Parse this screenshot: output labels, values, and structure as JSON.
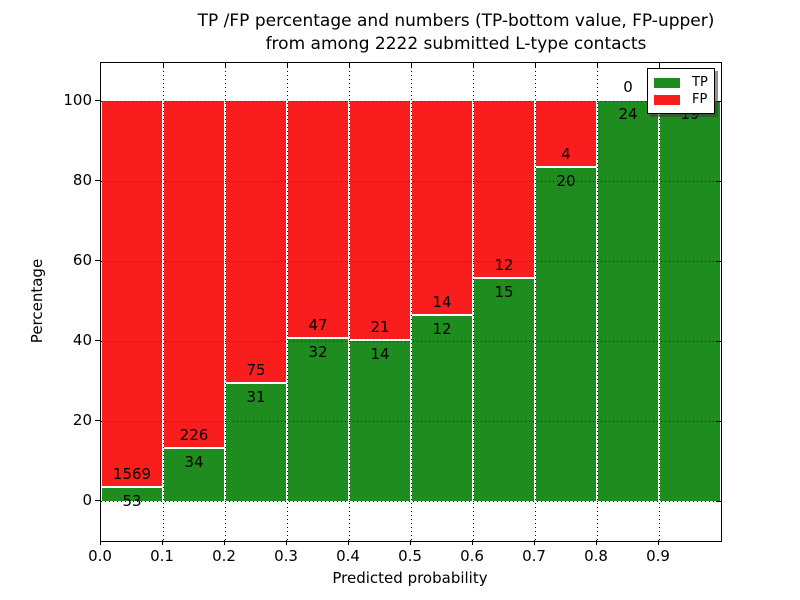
{
  "title": {
    "line1": "TP /FP percentage and numbers (TP-bottom value, FP-upper)",
    "line2": "from among 2222 submitted L-type contacts"
  },
  "chart_data": {
    "type": "bar",
    "stacked": true,
    "normalized_to_percent": true,
    "title": "TP /FP percentage and numbers (TP-bottom value, FP-upper) from among 2222 submitted L-type contacts",
    "xlabel": "Predicted probability",
    "ylabel": "Percentage",
    "total_contacts": 2222,
    "bin_width": 0.1,
    "categories": [
      "0.0",
      "0.1",
      "0.2",
      "0.3",
      "0.4",
      "0.5",
      "0.6",
      "0.7",
      "0.8",
      "0.9"
    ],
    "series": [
      {
        "name": "TP",
        "color": "#1e8c1e",
        "values": [
          53,
          34,
          31,
          32,
          14,
          12,
          15,
          20,
          24,
          19
        ]
      },
      {
        "name": "FP",
        "color": "#fa1d1d",
        "values": [
          1569,
          226,
          75,
          47,
          21,
          14,
          12,
          4,
          0,
          0
        ]
      }
    ],
    "tp_percent_of_bin": [
      3.3,
      13.1,
      29.2,
      40.5,
      40.0,
      46.2,
      55.6,
      83.3,
      100.0,
      100.0
    ],
    "x_ticks": [
      "0.0",
      "0.1",
      "0.2",
      "0.3",
      "0.4",
      "0.5",
      "0.6",
      "0.7",
      "0.8",
      "0.9"
    ],
    "y_ticks": [
      "0",
      "20",
      "40",
      "60",
      "80",
      "100"
    ],
    "xlim": [
      0.0,
      1.0
    ],
    "ylim": [
      -10,
      110
    ],
    "grid": "dotted",
    "legend": {
      "position": "upper right",
      "entries": [
        {
          "label": "TP"
        },
        {
          "label": "FP"
        }
      ]
    }
  }
}
